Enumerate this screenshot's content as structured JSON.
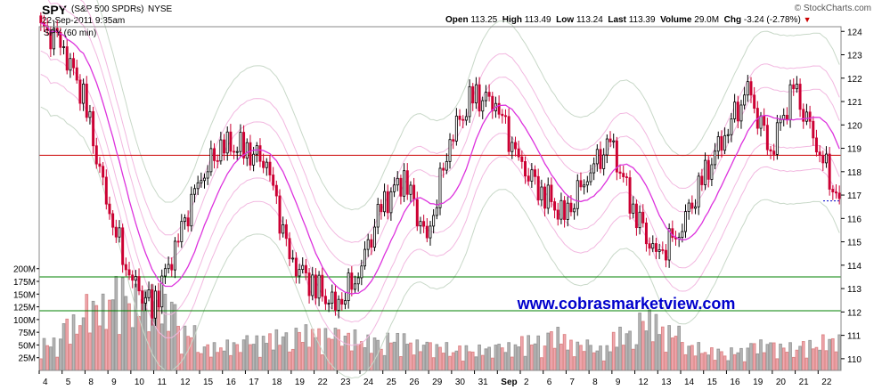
{
  "header": {
    "symbol": "SPY",
    "name": "(S&P 500 SPDRs)",
    "exchange": "NYSE",
    "timestamp": "22-Sep-2011 9:35am",
    "copyright": "© StockCharts.com",
    "open_label": "Open",
    "open": "113.25",
    "high_label": "High",
    "high": "113.49",
    "low_label": "Low",
    "low": "113.24",
    "last_label": "Last",
    "last": "113.39",
    "volume_label": "Volume",
    "volume": "29.0M",
    "chg_label": "Chg",
    "chg": "-3.24 (-2.78%)"
  },
  "panel_label": "SPY (60 min)",
  "watermark": "www.cobrasmarketview.com",
  "colors": {
    "up_candle": "#000000",
    "down_candle": "#cc0033",
    "ma": "#dd33dd",
    "band_outer": "#f2b8e0",
    "band_inner": "#c8d8c8",
    "hline_red": "#cc0000",
    "hline_green": "#008000",
    "vol_up": "#b8b8b8",
    "vol_down": "#f0a8b0",
    "watermark": "#0000cc"
  },
  "chart_data": {
    "type": "candlestick",
    "price_axis": {
      "min": 109.5,
      "max": 124.2,
      "ticks": [
        110,
        111,
        112,
        113,
        114,
        115,
        116,
        117,
        118,
        119,
        120,
        121,
        122,
        123,
        124
      ]
    },
    "volume_axis": {
      "ticks": [
        "25M",
        "50M",
        "75M",
        "100M",
        "125M",
        "150M",
        "175M",
        "200M"
      ],
      "values": [
        25,
        50,
        75,
        100,
        125,
        150,
        175,
        200
      ]
    },
    "x_labels": [
      "4",
      "5",
      "8",
      "9",
      "10",
      "11",
      "12",
      "15",
      "16",
      "17",
      "18",
      "19",
      "22",
      "23",
      "24",
      "25",
      "26",
      "29",
      "30",
      "31",
      "Sep",
      "2",
      "6",
      "7",
      "8",
      "9",
      "12",
      "13",
      "14",
      "15",
      "16",
      "19",
      "20",
      "21",
      "22"
    ],
    "horizontal_lines": [
      {
        "price": 118.7,
        "color": "red"
      },
      {
        "price": 113.5,
        "color": "green"
      },
      {
        "price": 112.05,
        "color": "green"
      }
    ],
    "last_price_marker": 116.75,
    "day_closes": [
      123.6,
      121.2,
      116.8,
      113.5,
      112.2,
      114.7,
      117.5,
      119.1,
      119.0,
      118.4,
      114.3,
      113.2,
      112.2,
      113.6,
      116.5,
      117.8,
      115.0,
      119.4,
      121.2,
      121.0,
      118.4,
      117.2,
      116.0,
      117.9,
      119.2,
      116.5,
      114.3,
      115.5,
      117.5,
      119.7,
      121.4,
      119.0,
      121.5,
      119.3,
      116.5
    ],
    "volume_M": [
      65,
      110,
      150,
      190,
      170,
      150,
      90,
      55,
      60,
      70,
      80,
      90,
      85,
      80,
      70,
      75,
      60,
      55,
      50,
      50,
      55,
      70,
      85,
      60,
      50,
      85,
      120,
      90,
      55,
      45,
      45,
      60,
      55,
      60,
      70
    ]
  }
}
